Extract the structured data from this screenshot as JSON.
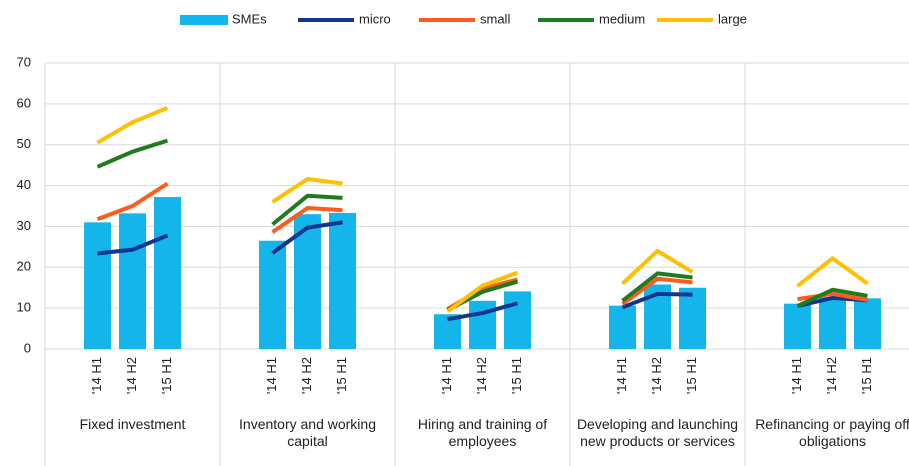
{
  "chart_data": {
    "type": "bar",
    "groups": [
      {
        "name": "Fixed investment",
        "categories": [
          "'14 H1",
          "'14 H2",
          "'15 H1"
        ]
      },
      {
        "name": "Inventory and working capital",
        "categories": [
          "'14 H1",
          "'14 H2",
          "'15 H1"
        ]
      },
      {
        "name": "Hiring and training of employees",
        "categories": [
          "'14 H1",
          "'14 H2",
          "'15 H1"
        ]
      },
      {
        "name": "Developing and launching new products or services",
        "categories": [
          "'14 H1",
          "'14 H2",
          "'15 H1"
        ]
      },
      {
        "name": "Refinancing or paying off obligations",
        "categories": [
          "'14 H1",
          "'14 H2",
          "'15 H1"
        ]
      }
    ],
    "series": [
      {
        "name": "SMEs",
        "type": "bar",
        "color": "#13b5ea",
        "values": [
          31,
          33.2,
          37.2,
          26.5,
          33,
          33.3,
          8.5,
          11.8,
          14.1,
          10.6,
          15.8,
          15,
          11.1,
          12.7,
          12.4
        ]
      },
      {
        "name": "micro",
        "type": "line",
        "color": "#12368f",
        "values": [
          23.4,
          24.3,
          27.8,
          23.5,
          29.7,
          31,
          7.3,
          8.8,
          11.2,
          10.2,
          13.5,
          13.3,
          10.5,
          12.5,
          11.9
        ]
      },
      {
        "name": "small",
        "type": "line",
        "color": "#ff5a1f",
        "values": [
          31.8,
          35,
          40.5,
          28.6,
          34.5,
          34,
          9.8,
          14.8,
          17,
          11,
          17.2,
          16.3,
          12.2,
          13.5,
          12
        ]
      },
      {
        "name": "medium",
        "type": "line",
        "color": "#1e7b1e",
        "values": [
          44.6,
          48.3,
          51,
          30.5,
          37.5,
          37,
          9.5,
          14,
          16.5,
          11.8,
          18.5,
          17.5,
          10.5,
          14.5,
          13
        ]
      },
      {
        "name": "large",
        "type": "line",
        "color": "#ffc000",
        "values": [
          50.5,
          55.5,
          59,
          36,
          41.6,
          40.5,
          9.2,
          15.5,
          18.7,
          16,
          24,
          18.8,
          15.4,
          22.2,
          16
        ]
      }
    ],
    "ylim": [
      0,
      70
    ],
    "yticks": [
      0,
      10,
      20,
      30,
      40,
      50,
      60,
      70
    ],
    "grid": true,
    "legend": "top"
  }
}
